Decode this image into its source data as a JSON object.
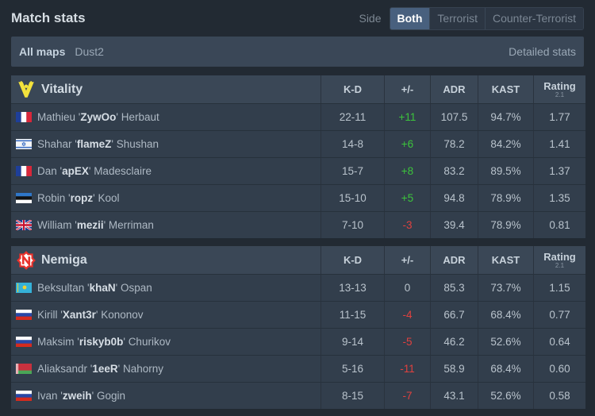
{
  "header": {
    "title": "Match stats",
    "side_label": "Side"
  },
  "side_options": [
    {
      "label": "Both",
      "active": true
    },
    {
      "label": "Terrorist",
      "active": false
    },
    {
      "label": "Counter-Terrorist",
      "active": false
    }
  ],
  "mapbar": {
    "all_maps": "All maps",
    "map": "Dust2",
    "detailed": "Detailed stats"
  },
  "columns": {
    "kd": "K-D",
    "diff": "+/-",
    "adr": "ADR",
    "kast": "KAST",
    "rating": "Rating",
    "rating_sub": "2.1"
  },
  "teams": [
    {
      "name": "Vitality",
      "logo_icon": "vitality-logo-icon",
      "players": [
        {
          "first": "Mathieu '",
          "nick": "ZywOo",
          "last": "' Herbaut",
          "flag": "france",
          "kd": "22-11",
          "diff": "+11",
          "adr": "107.5",
          "kast": "94.7%",
          "rating": "1.77"
        },
        {
          "first": "Shahar '",
          "nick": "flameZ",
          "last": "' Shushan",
          "flag": "israel",
          "kd": "14-8",
          "diff": "+6",
          "adr": "78.2",
          "kast": "84.2%",
          "rating": "1.41"
        },
        {
          "first": "Dan '",
          "nick": "apEX",
          "last": "' Madesclaire",
          "flag": "france",
          "kd": "15-7",
          "diff": "+8",
          "adr": "83.2",
          "kast": "89.5%",
          "rating": "1.37"
        },
        {
          "first": "Robin '",
          "nick": "ropz",
          "last": "' Kool",
          "flag": "estonia",
          "kd": "15-10",
          "diff": "+5",
          "adr": "94.8",
          "kast": "78.9%",
          "rating": "1.35"
        },
        {
          "first": "William '",
          "nick": "mezii",
          "last": "' Merriman",
          "flag": "uk",
          "kd": "7-10",
          "diff": "-3",
          "adr": "39.4",
          "kast": "78.9%",
          "rating": "0.81"
        }
      ]
    },
    {
      "name": "Nemiga",
      "logo_icon": "nemiga-logo-icon",
      "players": [
        {
          "first": "Beksultan '",
          "nick": "khaN",
          "last": "' Ospan",
          "flag": "kazakhstan",
          "kd": "13-13",
          "diff": "0",
          "adr": "85.3",
          "kast": "73.7%",
          "rating": "1.15"
        },
        {
          "first": "Kirill '",
          "nick": "Xant3r",
          "last": "' Kononov",
          "flag": "russia",
          "kd": "11-15",
          "diff": "-4",
          "adr": "66.7",
          "kast": "68.4%",
          "rating": "0.77"
        },
        {
          "first": "Maksim '",
          "nick": "riskyb0b",
          "last": "' Churikov",
          "flag": "russia",
          "kd": "9-14",
          "diff": "-5",
          "adr": "46.2",
          "kast": "52.6%",
          "rating": "0.64"
        },
        {
          "first": "Aliaksandr '",
          "nick": "1eeR",
          "last": "' Nahorny",
          "flag": "belarus",
          "kd": "5-16",
          "diff": "-11",
          "adr": "58.9",
          "kast": "68.4%",
          "rating": "0.60"
        },
        {
          "first": "Ivan '",
          "nick": "zweih",
          "last": "' Gogin",
          "flag": "russia",
          "kd": "8-15",
          "diff": "-7",
          "adr": "43.1",
          "kast": "52.6%",
          "rating": "0.58"
        }
      ]
    }
  ],
  "colors": {
    "positive": "#3cc43c",
    "negative": "#e0413f",
    "active_tab": "#48607e"
  }
}
